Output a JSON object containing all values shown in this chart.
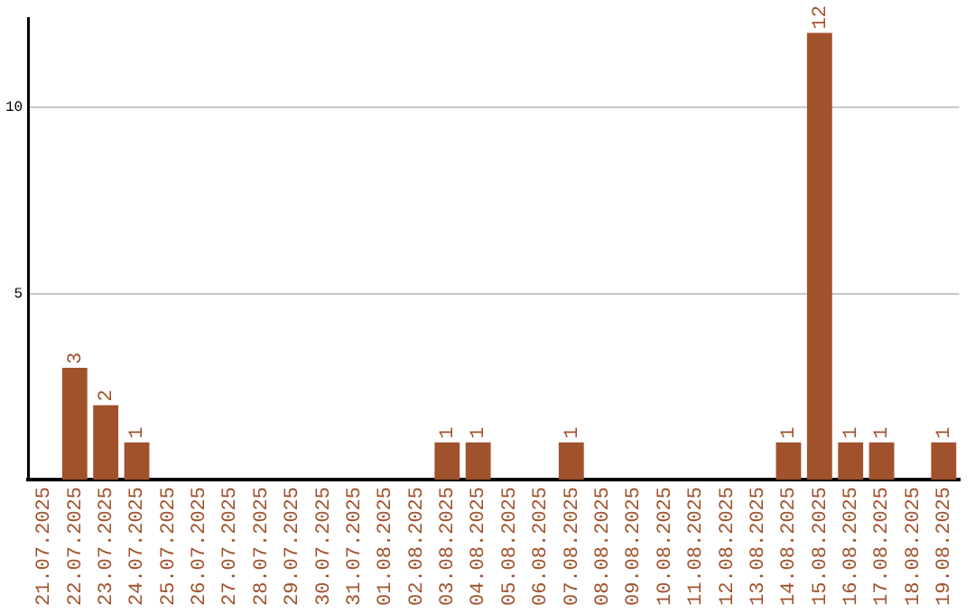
{
  "chart_data": {
    "type": "bar",
    "categories": [
      "21.07.2025",
      "22.07.2025",
      "23.07.2025",
      "24.07.2025",
      "25.07.2025",
      "26.07.2025",
      "27.07.2025",
      "28.07.2025",
      "29.07.2025",
      "30.07.2025",
      "31.07.2025",
      "01.08.2025",
      "02.08.2025",
      "03.08.2025",
      "04.08.2025",
      "05.08.2025",
      "06.08.2025",
      "07.08.2025",
      "08.08.2025",
      "09.08.2025",
      "10.08.2025",
      "11.08.2025",
      "12.08.2025",
      "13.08.2025",
      "14.08.2025",
      "15.08.2025",
      "16.08.2025",
      "17.08.2025",
      "18.08.2025",
      "19.08.2025"
    ],
    "values": [
      0,
      3,
      2,
      1,
      0,
      0,
      0,
      0,
      0,
      0,
      0,
      0,
      0,
      1,
      1,
      0,
      0,
      1,
      0,
      0,
      0,
      0,
      0,
      0,
      1,
      12,
      1,
      1,
      0,
      1
    ],
    "value_labels": [
      null,
      "3",
      "2",
      "1",
      null,
      null,
      null,
      null,
      null,
      null,
      null,
      null,
      null,
      "1",
      "1",
      null,
      null,
      "1",
      null,
      null,
      null,
      null,
      null,
      null,
      "1",
      "12",
      "1",
      "1",
      null,
      "1"
    ],
    "color": "#a0522d",
    "ylim": [
      0,
      12.4
    ],
    "yticks": [
      5,
      10
    ],
    "grid": "y",
    "legend": false
  }
}
